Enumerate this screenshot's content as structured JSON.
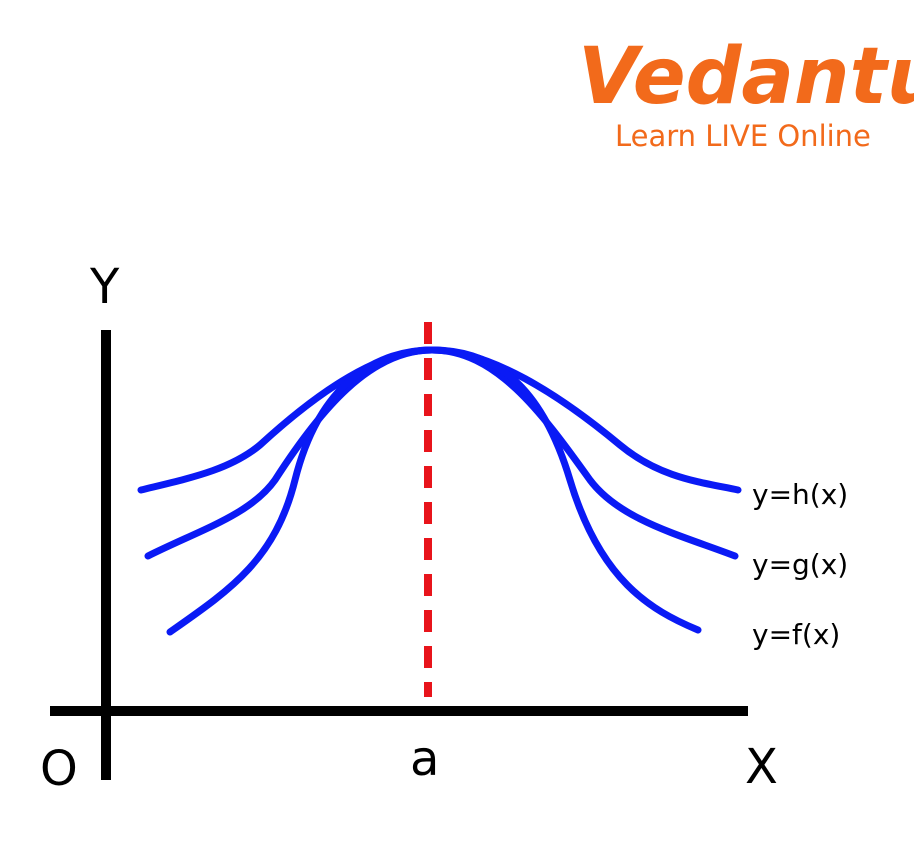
{
  "logo": {
    "name": "Vedantu",
    "tagline": "Learn LIVE Online"
  },
  "axes": {
    "y_label": "Y",
    "x_label": "X",
    "origin_label": "O",
    "point_label": "a"
  },
  "curves": [
    {
      "label": "y=h(x)"
    },
    {
      "label": "y=g(x)"
    },
    {
      "label": "y=f(x)"
    }
  ]
}
